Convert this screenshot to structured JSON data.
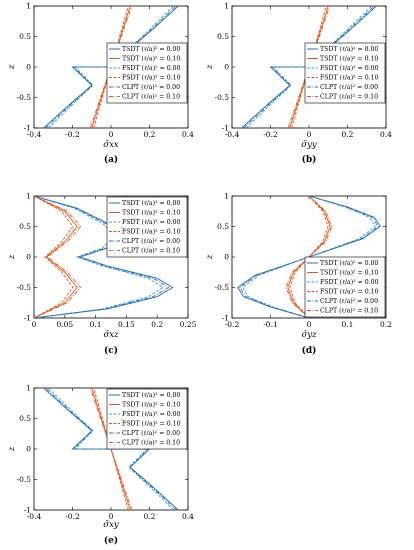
{
  "colors": {
    "tsdt": "#2a6fb0",
    "fsdt": "#e0581e",
    "clpt": "#3f9fd6",
    "axis": "#000000",
    "legend_border": "#000000"
  },
  "legend_entries": [
    {
      "label": "TSDT (ℓ/a)² = 0.00",
      "color": "#2a6fb0",
      "dash": ""
    },
    {
      "label": "TSDT (ℓ/a)² = 0.10",
      "color": "#e0581e",
      "dash": ""
    },
    {
      "label": "FSDT (ℓ/a)² = 0.00",
      "color": "#3f9fd6",
      "dash": "3,1.5"
    },
    {
      "label": "FSDT (ℓ/a)² = 0.10",
      "color": "#e0581e",
      "dash": "3,1.5"
    },
    {
      "label": "CLPT (ℓ/a)² = 0.00",
      "color": "#2a6fb0",
      "dash": "4,1.5,1,1.5"
    },
    {
      "label": "CLPT (ℓ/a)² = 0.10",
      "color": "#e0581e",
      "dash": "4,1.5,1,1.5"
    }
  ],
  "chart_data": [
    {
      "id": "a",
      "type": "line",
      "caption": "(a)",
      "xlabel": "σ̄xx",
      "ylabel": "z",
      "xlim": [
        -0.4,
        0.4
      ],
      "ylim": [
        -1,
        1
      ],
      "xticks": [
        "-0.4",
        "-0.2",
        "0",
        "0.2",
        "0.4"
      ],
      "yticks": [
        "-1",
        "-0.5",
        "0",
        "0.5",
        "1"
      ],
      "legend": "right",
      "series": [
        {
          "name": "TSDT (ℓ/a)² = 0.00",
          "x": [
            -0.35,
            -0.21,
            -0.1,
            -0.2,
            0.2,
            0.1,
            0.21,
            0.35
          ],
          "z": [
            -1,
            -0.6,
            -0.3,
            0,
            0,
            0.3,
            0.6,
            1
          ]
        },
        {
          "name": "TSDT (ℓ/a)² = 0.10",
          "x": [
            -0.1,
            -0.06,
            -0.03,
            0,
            0.03,
            0.06,
            0.1
          ],
          "z": [
            -1,
            -0.6,
            -0.3,
            0,
            0.3,
            0.6,
            1
          ]
        }
      ]
    },
    {
      "id": "b",
      "type": "line",
      "caption": "(b)",
      "xlabel": "σ̄yy",
      "ylabel": "z",
      "xlim": [
        -0.4,
        0.4
      ],
      "ylim": [
        -1,
        1
      ],
      "xticks": [
        "-0.4",
        "-0.2",
        "0",
        "0.2",
        "0.4"
      ],
      "yticks": [
        "-1",
        "-0.5",
        "0",
        "0.5",
        "1"
      ],
      "legend": "right",
      "series": [
        {
          "name": "TSDT (ℓ/a)² = 0.00",
          "x": [
            -0.35,
            -0.21,
            -0.1,
            -0.2,
            0.2,
            0.1,
            0.21,
            0.35
          ],
          "z": [
            -1,
            -0.6,
            -0.3,
            0,
            0,
            0.3,
            0.6,
            1
          ]
        },
        {
          "name": "TSDT (ℓ/a)² = 0.10",
          "x": [
            -0.1,
            -0.06,
            -0.03,
            0,
            0.03,
            0.06,
            0.1
          ],
          "z": [
            -1,
            -0.6,
            -0.3,
            0,
            0.3,
            0.6,
            1
          ]
        }
      ]
    },
    {
      "id": "c",
      "type": "line",
      "caption": "(c)",
      "xlabel": "σ̄xz",
      "ylabel": "z",
      "xlim": [
        0,
        0.25
      ],
      "ylim": [
        -1,
        1
      ],
      "xticks": [
        "0",
        "0.05",
        "0.1",
        "0.15",
        "0.2",
        "0.25"
      ],
      "yticks": [
        "-1",
        "-0.5",
        "0",
        "0.5",
        "1"
      ],
      "legend": "top-right",
      "series": [
        {
          "name": "TSDT (ℓ/a)² = 0.00",
          "x": [
            0,
            0.12,
            0.2,
            0.225,
            0.2,
            0.12,
            0.075,
            0.12,
            0.14,
            0.12,
            0.07,
            0
          ],
          "z": [
            -1,
            -0.85,
            -0.65,
            -0.5,
            -0.35,
            -0.15,
            0,
            0.15,
            0.35,
            0.55,
            0.8,
            1
          ]
        },
        {
          "name": "TSDT (ℓ/a)² = 0.10",
          "x": [
            0,
            0.05,
            0.07,
            0.05,
            0.02,
            0.05,
            0.07,
            0.05,
            0
          ],
          "z": [
            -1,
            -0.75,
            -0.5,
            -0.25,
            0,
            0.25,
            0.5,
            0.75,
            1
          ]
        }
      ]
    },
    {
      "id": "d",
      "type": "line",
      "caption": "(d)",
      "xlabel": "σ̄yz",
      "ylabel": "z",
      "xlim": [
        -0.2,
        0.2
      ],
      "ylim": [
        -1,
        1
      ],
      "xticks": [
        "-0.2",
        "-0.1",
        "0",
        "0.1",
        "0.2"
      ],
      "yticks": [
        "-1",
        "-0.5",
        "0",
        "0.5",
        "1"
      ],
      "legend": "bottom-right",
      "series": [
        {
          "name": "TSDT (ℓ/a)² = 0.00",
          "x": [
            0,
            -0.1,
            -0.17,
            -0.185,
            -0.14,
            0,
            0.14,
            0.185,
            0.17,
            0.1,
            0
          ],
          "z": [
            -1,
            -0.82,
            -0.65,
            -0.5,
            -0.3,
            0,
            0.3,
            0.5,
            0.65,
            0.82,
            1
          ]
        },
        {
          "name": "TSDT (ℓ/a)² = 0.10",
          "x": [
            0,
            -0.04,
            -0.055,
            -0.04,
            0,
            0.04,
            0.055,
            0.04,
            0
          ],
          "z": [
            -1,
            -0.75,
            -0.5,
            -0.25,
            0,
            0.25,
            0.5,
            0.75,
            1
          ]
        }
      ]
    },
    {
      "id": "e",
      "type": "line",
      "caption": "(e)",
      "xlabel": "σ̄xy",
      "ylabel": "z",
      "xlim": [
        -0.4,
        0.4
      ],
      "ylim": [
        -1,
        1
      ],
      "xticks": [
        "-0.4",
        "-0.2",
        "0",
        "0.2",
        "0.4"
      ],
      "yticks": [
        "-1",
        "-0.5",
        "0",
        "0.5",
        "1"
      ],
      "legend": "top-right",
      "series": [
        {
          "name": "TSDT (ℓ/a)² = 0.00",
          "x": [
            0.35,
            0.21,
            0.1,
            0.2,
            -0.2,
            -0.1,
            -0.21,
            -0.35
          ],
          "z": [
            -1,
            -0.6,
            -0.3,
            0,
            0,
            0.3,
            0.6,
            1
          ]
        },
        {
          "name": "TSDT (ℓ/a)² = 0.10",
          "x": [
            0.1,
            0.06,
            0.03,
            0,
            -0.03,
            -0.06,
            -0.1
          ],
          "z": [
            -1,
            -0.6,
            -0.3,
            0,
            0.3,
            0.6,
            1
          ]
        }
      ]
    }
  ]
}
